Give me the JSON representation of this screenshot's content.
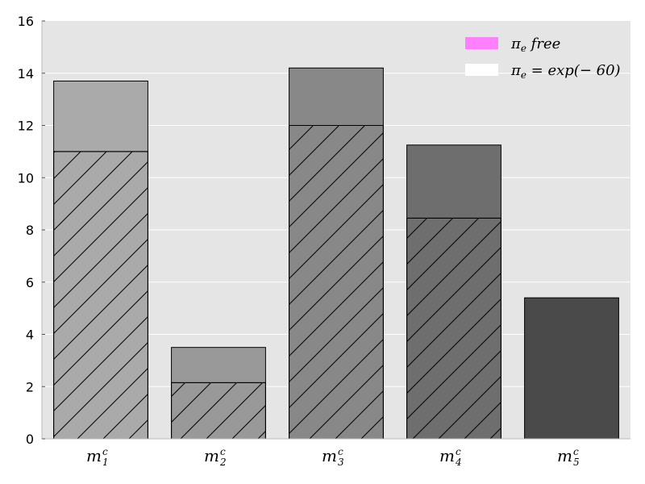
{
  "chart_data": {
    "type": "bar",
    "categories": [
      {
        "base": "m",
        "sup": "c",
        "sub": "1"
      },
      {
        "base": "m",
        "sup": "c",
        "sub": "2"
      },
      {
        "base": "m",
        "sup": "c",
        "sub": "3"
      },
      {
        "base": "m",
        "sup": "c",
        "sub": "4"
      },
      {
        "base": "m",
        "sup": "c",
        "sub": "5"
      }
    ],
    "series": [
      {
        "name": "π_e free",
        "label_parts": {
          "symbol": "π",
          "sub": "e",
          "text": "free"
        },
        "values": [
          13.7,
          3.5,
          14.2,
          11.25,
          5.4
        ]
      },
      {
        "name": "π_e = exp(−60)",
        "label_parts": {
          "symbol": "π",
          "sub": "e",
          "text": "= exp(− 60)"
        },
        "values": [
          11.0,
          2.15,
          12.0,
          8.45,
          0.0
        ]
      }
    ],
    "bar_colors": [
      "#aaaaaa",
      "#999999",
      "#888888",
      "#6e6e6e",
      "#4a4a4a"
    ],
    "legend_colors": [
      "#ff80ff",
      "#ffffff"
    ],
    "background": "#e5e5e5",
    "ylim": [
      0,
      16
    ],
    "yticks": [
      0,
      2,
      4,
      6,
      8,
      10,
      12,
      14,
      16
    ],
    "grid": true,
    "legend_position": "top-right",
    "title": "",
    "xlabel": "",
    "ylabel": ""
  }
}
